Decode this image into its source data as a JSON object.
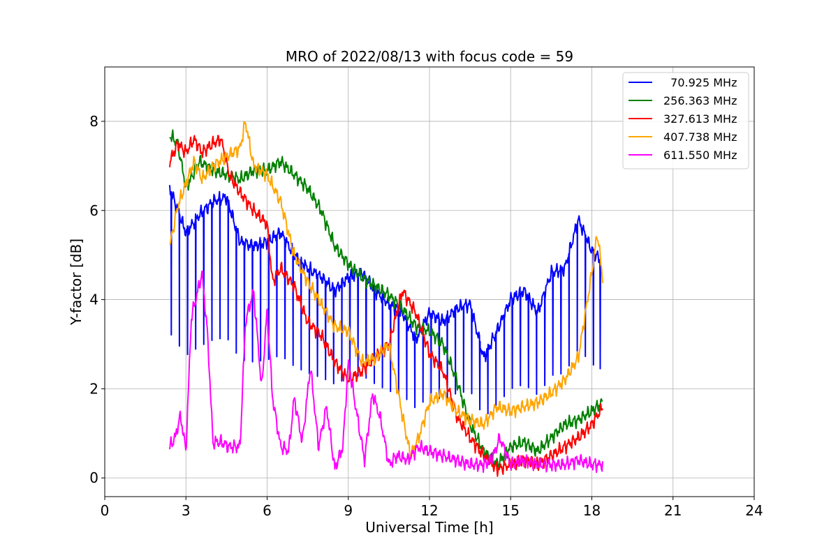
{
  "chart_data": {
    "type": "line",
    "title": "MRO of 2022/08/13 with focus code = 59",
    "xlabel": "Universal Time [h]",
    "ylabel": "Y-factor [dB]",
    "xlim": [
      0,
      24
    ],
    "ylim": [
      -0.42,
      9.22
    ],
    "xticks": [
      0,
      3,
      6,
      9,
      12,
      15,
      18,
      21,
      24
    ],
    "yticks": [
      0,
      2,
      4,
      6,
      8
    ],
    "grid": true,
    "legend_position": "top-right",
    "series": [
      {
        "name": "  70.925 MHz",
        "color": "#0000ff",
        "x": [
          2.4,
          3.0,
          3.5,
          4.0,
          4.5,
          5.0,
          5.5,
          6.0,
          6.5,
          7.0,
          7.5,
          8.0,
          8.5,
          9.0,
          9.5,
          10.0,
          10.5,
          11.0,
          11.5,
          12.0,
          12.5,
          13.0,
          13.5,
          14.0,
          14.5,
          15.0,
          15.5,
          16.0,
          16.5,
          17.0,
          17.5,
          18.0,
          18.3
        ],
        "y": [
          6.5,
          5.5,
          5.9,
          6.2,
          6.3,
          5.3,
          5.2,
          5.3,
          5.5,
          5.0,
          4.7,
          4.5,
          4.2,
          4.5,
          4.6,
          4.2,
          3.9,
          3.7,
          3.1,
          3.7,
          3.5,
          3.8,
          3.9,
          2.7,
          3.3,
          4.0,
          4.2,
          3.7,
          4.6,
          4.7,
          5.8,
          5.1,
          4.9
        ],
        "dips": [
          2.45,
          2.75,
          3.05,
          3.35,
          3.65,
          3.95,
          4.25,
          4.55,
          4.85,
          5.15,
          5.45,
          5.75,
          6.05,
          6.35,
          6.65,
          6.95,
          7.25,
          7.55,
          7.85,
          8.15,
          8.45,
          8.75,
          9.05,
          9.35,
          9.65,
          9.95,
          10.25,
          10.55,
          10.85,
          11.15,
          11.45,
          11.75,
          12.05,
          12.35,
          12.65,
          12.95,
          13.25,
          13.55,
          13.85,
          14.15,
          14.45,
          14.75,
          15.05,
          15.35,
          15.65,
          15.95,
          16.25,
          16.55,
          16.85,
          17.15,
          17.45,
          17.75,
          18.05,
          18.3
        ],
        "dip_depth": 0.5
      },
      {
        "name": "256.363 MHz",
        "color": "#008000",
        "x": [
          2.4,
          2.7,
          3.0,
          3.5,
          4.0,
          4.5,
          5.0,
          5.5,
          6.0,
          6.5,
          7.0,
          7.5,
          8.0,
          8.5,
          9.0,
          9.5,
          10.0,
          10.5,
          11.0,
          11.5,
          12.0,
          12.5,
          13.0,
          13.5,
          14.0,
          14.5,
          15.0,
          15.5,
          16.0,
          16.5,
          17.0,
          17.5,
          18.0,
          18.4
        ],
        "y": [
          7.7,
          7.5,
          6.5,
          7.1,
          6.9,
          6.8,
          6.7,
          6.9,
          6.9,
          7.1,
          6.8,
          6.5,
          6.0,
          5.2,
          4.8,
          4.5,
          4.3,
          4.1,
          3.8,
          3.4,
          3.3,
          3.0,
          2.2,
          1.2,
          0.6,
          0.3,
          0.7,
          0.8,
          0.6,
          0.9,
          1.2,
          1.3,
          1.5,
          1.7
        ]
      },
      {
        "name": "327.613 MHz",
        "color": "#ff0000",
        "x": [
          2.4,
          2.7,
          3.0,
          3.3,
          3.6,
          4.0,
          4.3,
          4.6,
          5.0,
          5.5,
          6.0,
          6.2,
          6.5,
          7.0,
          7.5,
          8.0,
          8.5,
          9.0,
          9.5,
          10.0,
          10.5,
          11.0,
          11.5,
          12.0,
          12.5,
          13.0,
          13.5,
          14.0,
          14.5,
          15.0,
          15.5,
          16.0,
          16.5,
          17.0,
          17.5,
          18.0,
          18.4
        ],
        "y": [
          7.1,
          7.5,
          7.3,
          7.6,
          7.3,
          7.5,
          7.6,
          6.8,
          6.4,
          6.0,
          5.7,
          4.4,
          4.7,
          4.3,
          3.5,
          3.2,
          2.6,
          2.2,
          2.4,
          2.7,
          3.0,
          4.2,
          3.7,
          2.8,
          2.4,
          1.4,
          0.9,
          0.5,
          0.2,
          0.3,
          0.4,
          0.3,
          0.5,
          0.7,
          0.9,
          1.2,
          1.6
        ]
      },
      {
        "name": "407.738 MHz",
        "color": "#ffa500",
        "x": [
          2.4,
          2.7,
          3.0,
          3.3,
          3.6,
          4.0,
          4.5,
          5.0,
          5.2,
          5.5,
          6.0,
          6.5,
          7.0,
          7.5,
          8.0,
          8.5,
          9.0,
          9.5,
          10.0,
          10.5,
          11.0,
          11.3,
          11.6,
          12.0,
          12.5,
          13.0,
          13.5,
          14.0,
          14.5,
          15.0,
          15.5,
          16.0,
          16.5,
          17.0,
          17.5,
          18.0,
          18.2,
          18.4
        ],
        "y": [
          5.2,
          6.1,
          6.6,
          7.1,
          6.7,
          7.0,
          7.2,
          7.4,
          8.0,
          7.0,
          6.8,
          6.2,
          5.0,
          4.4,
          3.9,
          3.4,
          3.3,
          2.6,
          2.7,
          3.0,
          1.4,
          0.5,
          0.9,
          1.7,
          1.9,
          1.5,
          1.3,
          1.2,
          1.6,
          1.5,
          1.6,
          1.7,
          1.9,
          2.2,
          2.7,
          4.6,
          5.5,
          4.5
        ]
      },
      {
        "name": "611.550 MHz",
        "color": "#ff00ff",
        "x": [
          2.4,
          2.6,
          2.8,
          3.0,
          3.2,
          3.4,
          3.6,
          3.8,
          4.0,
          4.3,
          4.6,
          5.0,
          5.2,
          5.5,
          5.8,
          6.0,
          6.2,
          6.5,
          6.8,
          7.0,
          7.3,
          7.6,
          7.9,
          8.2,
          8.5,
          8.8,
          9.0,
          9.3,
          9.6,
          9.9,
          10.2,
          10.5,
          10.8,
          11.2,
          11.6,
          12.0,
          12.5,
          13.0,
          13.5,
          14.0,
          14.3,
          14.6,
          15.0,
          15.5,
          16.0,
          16.5,
          17.0,
          17.5,
          18.0,
          18.4
        ],
        "y": [
          0.7,
          0.9,
          1.4,
          0.6,
          3.6,
          4.1,
          4.6,
          3.2,
          0.8,
          0.8,
          0.7,
          0.7,
          3.5,
          4.2,
          2.0,
          3.8,
          1.8,
          0.7,
          0.6,
          1.8,
          0.8,
          2.5,
          0.7,
          1.6,
          0.2,
          0.7,
          2.6,
          1.5,
          0.4,
          1.9,
          1.3,
          0.3,
          0.5,
          0.4,
          0.7,
          0.6,
          0.5,
          0.4,
          0.3,
          0.3,
          0.4,
          0.9,
          0.3,
          0.4,
          0.3,
          0.3,
          0.3,
          0.4,
          0.3,
          0.3
        ]
      }
    ]
  }
}
